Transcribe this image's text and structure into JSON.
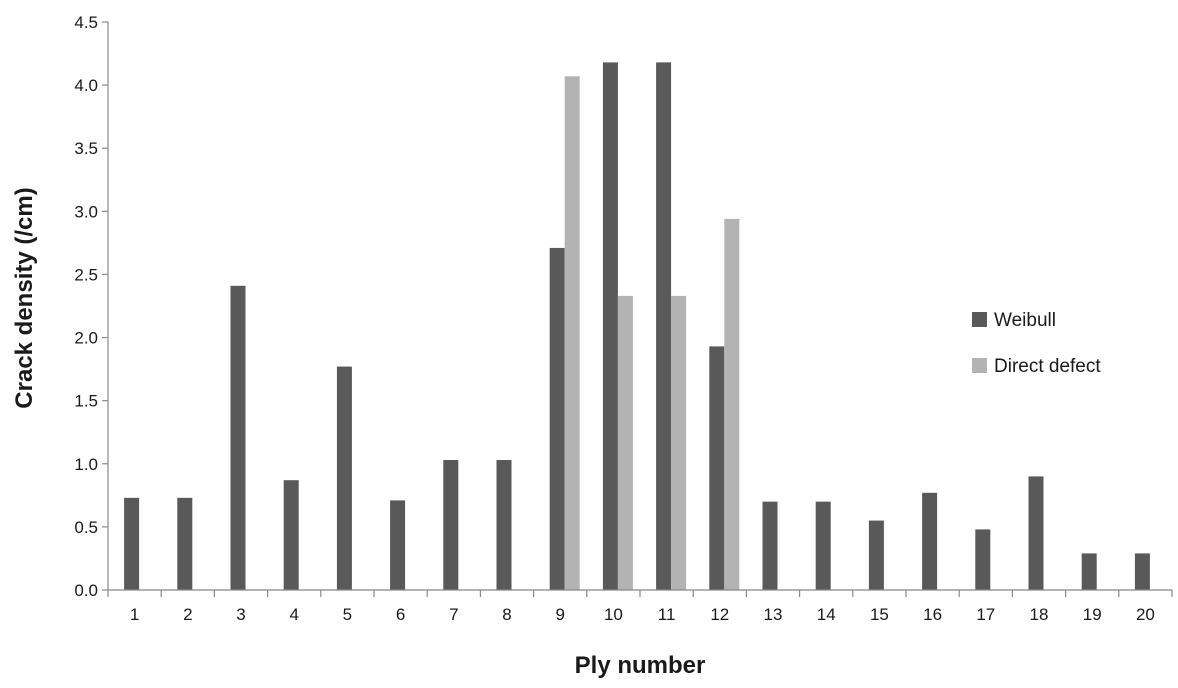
{
  "chart_data": {
    "type": "bar",
    "title": "",
    "xlabel": "Ply number",
    "ylabel": "Crack density (/cm)",
    "categories": [
      "1",
      "2",
      "3",
      "4",
      "5",
      "6",
      "7",
      "8",
      "9",
      "10",
      "11",
      "12",
      "13",
      "14",
      "15",
      "16",
      "17",
      "18",
      "19",
      "20"
    ],
    "ylim": [
      0,
      4.5
    ],
    "yticks": [
      "0.0",
      "0.5",
      "1.0",
      "1.5",
      "2.0",
      "2.5",
      "3.0",
      "3.5",
      "4.0",
      "4.5"
    ],
    "grid": false,
    "legend_position": "right",
    "series": [
      {
        "name": "Weibull",
        "color": "#595959",
        "values": [
          0.73,
          0.73,
          2.41,
          0.87,
          1.77,
          0.71,
          1.03,
          1.03,
          2.71,
          4.18,
          4.18,
          1.93,
          0.7,
          0.7,
          0.55,
          0.77,
          0.48,
          0.9,
          0.29,
          0.29
        ]
      },
      {
        "name": "Direct defect",
        "color": "#b3b3b3",
        "values": [
          0,
          0,
          0,
          0,
          0,
          0,
          0,
          0,
          4.07,
          2.33,
          2.33,
          2.94,
          0,
          0,
          0,
          0,
          0,
          0,
          0,
          0
        ]
      }
    ]
  }
}
